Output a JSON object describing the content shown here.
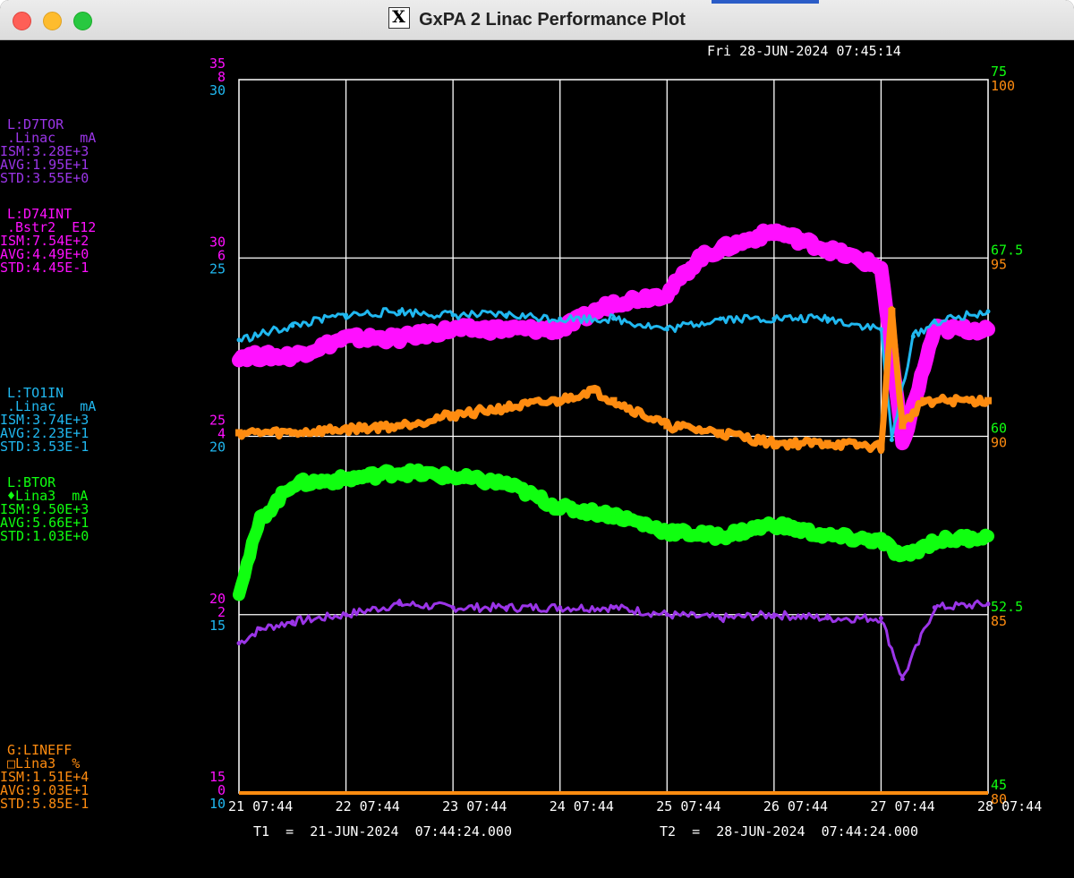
{
  "window": {
    "title": "GxPA 2 Linac Performance Plot"
  },
  "timestamp": "Fri 28-JUN-2024 07:45:14",
  "colors": {
    "purple": "#9b35e8",
    "magenta": "#ff10ff",
    "cyan": "#20b8f0",
    "green": "#10ff10",
    "orange": "#ff8c10",
    "grid": "#ffffff",
    "bg": "#000000"
  },
  "legend": [
    {
      "color": "#9b35e8",
      "lines": [
        "L:D7TOR",
        ".Linac   mA",
        "ISM:3.28E+3",
        "AVG:1.95E+1",
        "STD:3.55E+0"
      ]
    },
    {
      "color": "#ff10ff",
      "lines": [
        "L:D74INT",
        ".Bstr2  E12",
        "ISM:7.54E+2",
        "AVG:4.49E+0",
        "STD:4.45E-1"
      ]
    },
    {
      "color": "#20b8f0",
      "lines": [
        "L:TO1IN",
        ".Linac   mA",
        "ISM:3.74E+3",
        "AVG:2.23E+1",
        "STD:3.53E-1"
      ]
    },
    {
      "color": "#10ff10",
      "lines": [
        "L:BTOR",
        "♦Lina3  mA",
        "ISM:9.50E+3",
        "AVG:5.66E+1",
        "STD:1.03E+0"
      ]
    },
    {
      "color": "#ff8c10",
      "lines": [
        "G:LINEFF",
        "□Lina3  %",
        "ISM:1.51E+4",
        "AVG:9.03E+1",
        "STD:5.85E-1"
      ]
    }
  ],
  "left_axis": [
    {
      "purple": "35",
      "magenta": "8",
      "cyan": "30"
    },
    {
      "purple": "30",
      "magenta": "6",
      "cyan": "25"
    },
    {
      "purple": "25",
      "magenta": "4",
      "cyan": "20"
    },
    {
      "purple": "20",
      "magenta": "2",
      "cyan": "15"
    },
    {
      "purple": "15",
      "magenta": "0",
      "cyan": "10"
    }
  ],
  "right_axis": [
    {
      "green": "75",
      "orange": "100"
    },
    {
      "green": "67.5",
      "orange": "95"
    },
    {
      "green": "60",
      "orange": "90"
    },
    {
      "green": "52.5",
      "orange": "85"
    },
    {
      "green": "45",
      "orange": "80"
    }
  ],
  "x_ticks": [
    "21  07:44",
    "22  07:44",
    "23  07:44",
    "24  07:44",
    "25  07:44",
    "26  07:44",
    "27  07:44",
    "28  07:44"
  ],
  "t1": "T1  =  21-JUN-2024  07:44:24.000",
  "t2": "T2  =  28-JUN-2024  07:44:24.000",
  "chart_data": {
    "type": "line",
    "x_unit": "day of June 2024 (07:44)",
    "xlim": [
      21,
      28
    ],
    "series": [
      {
        "name": "L:D7TOR",
        "unit": "mA",
        "ylim": [
          15,
          35
        ],
        "x": [
          21,
          21.2,
          21.5,
          22,
          22.5,
          23,
          23.5,
          24,
          24.5,
          25,
          25.5,
          26,
          26.5,
          27,
          27.2,
          27.5,
          28
        ],
        "values": [
          19.2,
          19.6,
          19.8,
          20.0,
          20.3,
          20.2,
          20.2,
          20.2,
          20.2,
          20.0,
          19.9,
          20.0,
          19.9,
          19.9,
          18.2,
          20.2,
          20.3
        ]
      },
      {
        "name": "L:D74INT",
        "unit": "E12",
        "ylim": [
          0,
          8
        ],
        "x": [
          21,
          21.5,
          22,
          22.5,
          23,
          23.5,
          24,
          24.5,
          25,
          25.3,
          25.5,
          26,
          26.5,
          27,
          27.2,
          27.5,
          28
        ],
        "values": [
          4.9,
          4.9,
          5.1,
          5.1,
          5.2,
          5.2,
          5.2,
          5.5,
          5.6,
          6.0,
          6.1,
          6.3,
          6.1,
          5.9,
          3.9,
          5.2,
          5.2
        ]
      },
      {
        "name": "L:TO1IN",
        "unit": "mA",
        "ylim": [
          10,
          30
        ],
        "x": [
          21,
          21.5,
          22,
          22.5,
          23,
          23.5,
          24,
          24.5,
          25,
          25.5,
          26,
          26.5,
          27,
          27.1,
          27.3,
          27.5,
          28
        ],
        "values": [
          22.7,
          23.1,
          23.4,
          23.5,
          23.4,
          23.4,
          23.3,
          23.3,
          23.0,
          23.3,
          23.3,
          23.3,
          23.0,
          19.9,
          22.8,
          23.2,
          23.5
        ]
      },
      {
        "name": "L:BTOR",
        "unit": "mA",
        "ylim": [
          45,
          75
        ],
        "x": [
          21,
          21.2,
          21.5,
          22,
          22.5,
          23,
          23.5,
          24,
          24.5,
          25,
          25.5,
          26,
          26.5,
          27,
          27.2,
          27.5,
          28
        ],
        "values": [
          53.5,
          56.5,
          58.0,
          58.2,
          58.5,
          58.3,
          58.0,
          57.0,
          56.7,
          56.0,
          55.8,
          56.3,
          55.8,
          55.6,
          54.9,
          55.6,
          55.8
        ]
      },
      {
        "name": "G:LINEFF",
        "unit": "%",
        "ylim": [
          80,
          100
        ],
        "x": [
          21,
          21.5,
          22,
          22.5,
          23,
          23.5,
          24,
          24.3,
          24.5,
          25,
          25.5,
          26,
          26.5,
          27,
          27.1,
          27.2,
          27.4,
          28
        ],
        "values": [
          90.1,
          90.1,
          90.2,
          90.3,
          90.6,
          90.8,
          91.0,
          91.3,
          91.0,
          90.3,
          90.1,
          89.8,
          89.8,
          89.7,
          93.5,
          90.3,
          91.0,
          91.0
        ]
      }
    ]
  }
}
